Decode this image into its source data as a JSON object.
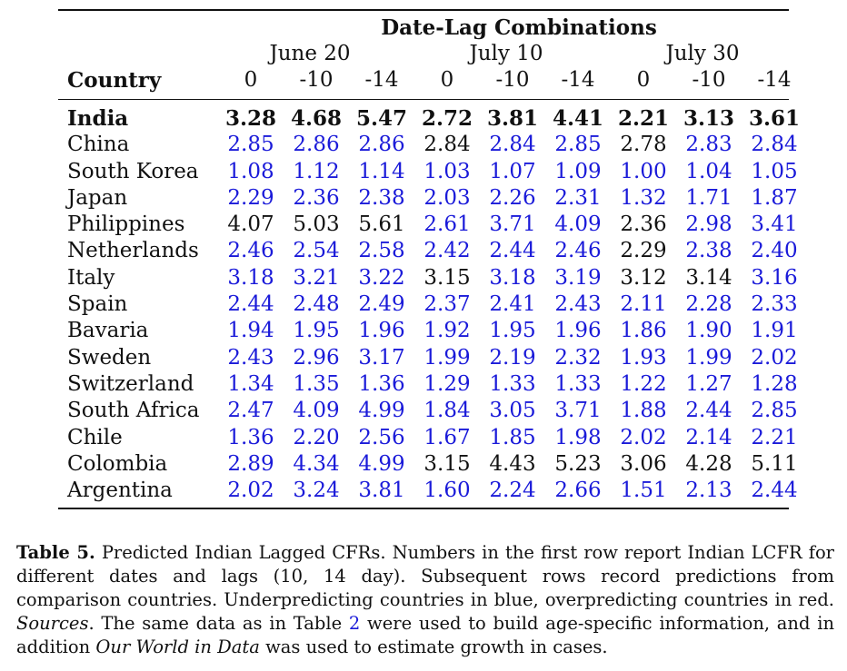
{
  "table": {
    "group_header": "Date-Lag Combinations",
    "country_header": "Country",
    "dates": [
      "June 20",
      "July 10",
      "July 30"
    ],
    "lags": [
      "0",
      "-10",
      "-14",
      "0",
      "-10",
      "-14",
      "0",
      "-10",
      "-14"
    ],
    "rows": [
      {
        "country": "India",
        "bold": true,
        "values": [
          "3.28",
          "4.68",
          "5.47",
          "2.72",
          "3.81",
          "4.41",
          "2.21",
          "3.13",
          "3.61"
        ],
        "colors": [
          "black",
          "black",
          "black",
          "black",
          "black",
          "black",
          "black",
          "black",
          "black"
        ]
      },
      {
        "country": "China",
        "values": [
          "2.85",
          "2.86",
          "2.86",
          "2.84",
          "2.84",
          "2.85",
          "2.78",
          "2.83",
          "2.84"
        ],
        "colors": [
          "blue",
          "blue",
          "blue",
          "black",
          "blue",
          "blue",
          "black",
          "blue",
          "blue"
        ]
      },
      {
        "country": "South Korea",
        "values": [
          "1.08",
          "1.12",
          "1.14",
          "1.03",
          "1.07",
          "1.09",
          "1.00",
          "1.04",
          "1.05"
        ],
        "colors": [
          "blue",
          "blue",
          "blue",
          "blue",
          "blue",
          "blue",
          "blue",
          "blue",
          "blue"
        ]
      },
      {
        "country": "Japan",
        "values": [
          "2.29",
          "2.36",
          "2.38",
          "2.03",
          "2.26",
          "2.31",
          "1.32",
          "1.71",
          "1.87"
        ],
        "colors": [
          "blue",
          "blue",
          "blue",
          "blue",
          "blue",
          "blue",
          "blue",
          "blue",
          "blue"
        ]
      },
      {
        "country": "Philippines",
        "values": [
          "4.07",
          "5.03",
          "5.61",
          "2.61",
          "3.71",
          "4.09",
          "2.36",
          "2.98",
          "3.41"
        ],
        "colors": [
          "black",
          "black",
          "black",
          "blue",
          "blue",
          "blue",
          "black",
          "blue",
          "blue"
        ]
      },
      {
        "country": "Netherlands",
        "values": [
          "2.46",
          "2.54",
          "2.58",
          "2.42",
          "2.44",
          "2.46",
          "2.29",
          "2.38",
          "2.40"
        ],
        "colors": [
          "blue",
          "blue",
          "blue",
          "blue",
          "blue",
          "blue",
          "black",
          "blue",
          "blue"
        ]
      },
      {
        "country": "Italy",
        "values": [
          "3.18",
          "3.21",
          "3.22",
          "3.15",
          "3.18",
          "3.19",
          "3.12",
          "3.14",
          "3.16"
        ],
        "colors": [
          "blue",
          "blue",
          "blue",
          "black",
          "blue",
          "blue",
          "black",
          "black",
          "blue"
        ]
      },
      {
        "country": "Spain",
        "values": [
          "2.44",
          "2.48",
          "2.49",
          "2.37",
          "2.41",
          "2.43",
          "2.11",
          "2.28",
          "2.33"
        ],
        "colors": [
          "blue",
          "blue",
          "blue",
          "blue",
          "blue",
          "blue",
          "blue",
          "blue",
          "blue"
        ]
      },
      {
        "country": "Bavaria",
        "values": [
          "1.94",
          "1.95",
          "1.96",
          "1.92",
          "1.95",
          "1.96",
          "1.86",
          "1.90",
          "1.91"
        ],
        "colors": [
          "blue",
          "blue",
          "blue",
          "blue",
          "blue",
          "blue",
          "blue",
          "blue",
          "blue"
        ]
      },
      {
        "country": "Sweden",
        "values": [
          "2.43",
          "2.96",
          "3.17",
          "1.99",
          "2.19",
          "2.32",
          "1.93",
          "1.99",
          "2.02"
        ],
        "colors": [
          "blue",
          "blue",
          "blue",
          "blue",
          "blue",
          "blue",
          "blue",
          "blue",
          "blue"
        ]
      },
      {
        "country": "Switzerland",
        "values": [
          "1.34",
          "1.35",
          "1.36",
          "1.29",
          "1.33",
          "1.33",
          "1.22",
          "1.27",
          "1.28"
        ],
        "colors": [
          "blue",
          "blue",
          "blue",
          "blue",
          "blue",
          "blue",
          "blue",
          "blue",
          "blue"
        ]
      },
      {
        "country": "South Africa",
        "values": [
          "2.47",
          "4.09",
          "4.99",
          "1.84",
          "3.05",
          "3.71",
          "1.88",
          "2.44",
          "2.85"
        ],
        "colors": [
          "blue",
          "blue",
          "blue",
          "blue",
          "blue",
          "blue",
          "blue",
          "blue",
          "blue"
        ]
      },
      {
        "country": "Chile",
        "values": [
          "1.36",
          "2.20",
          "2.56",
          "1.67",
          "1.85",
          "1.98",
          "2.02",
          "2.14",
          "2.21"
        ],
        "colors": [
          "blue",
          "blue",
          "blue",
          "blue",
          "blue",
          "blue",
          "blue",
          "blue",
          "blue"
        ]
      },
      {
        "country": "Colombia",
        "values": [
          "2.89",
          "4.34",
          "4.99",
          "3.15",
          "4.43",
          "5.23",
          "3.06",
          "4.28",
          "5.11"
        ],
        "colors": [
          "blue",
          "blue",
          "blue",
          "black",
          "black",
          "black",
          "black",
          "black",
          "black"
        ]
      },
      {
        "country": "Argentina",
        "values": [
          "2.02",
          "3.24",
          "3.81",
          "1.60",
          "2.24",
          "2.66",
          "1.51",
          "2.13",
          "2.44"
        ],
        "colors": [
          "blue",
          "blue",
          "blue",
          "blue",
          "blue",
          "blue",
          "blue",
          "blue",
          "blue"
        ]
      }
    ]
  },
  "caption": {
    "label": "Table 5.",
    "text1": " Predicted Indian Lagged CFRs. Numbers in the first row report Indian LCFR for different dates and lags (10, 14 day). Subsequent rows record predictions from comparison countries. Underpredicting countries in blue, overpredicting countries in red. ",
    "sources": "Sources",
    "text2": ". The same data as in Table ",
    "table_ref": "2",
    "text3": " were used to build age-specific information, and in addition ",
    "owid": "Our World in Data",
    "text4": " was used to estimate growth in cases."
  },
  "colors": {
    "blue": "#1a1ad9",
    "black": "#111111"
  }
}
